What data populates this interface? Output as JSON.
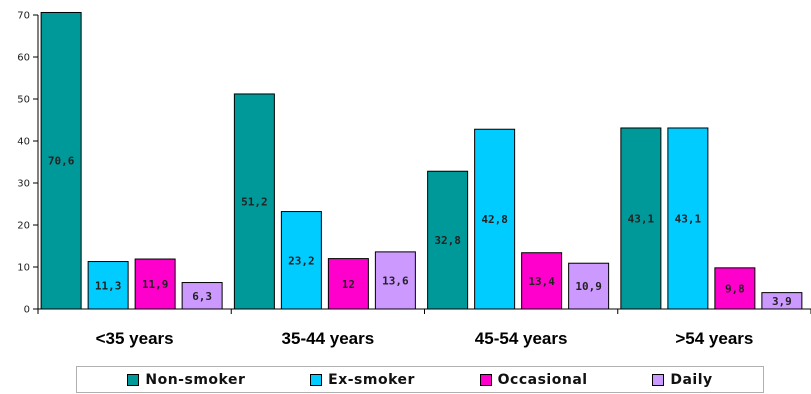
{
  "chart_data": {
    "type": "bar",
    "categories": [
      "<35 years",
      "35-44 years",
      "45-54 years",
      ">54 years"
    ],
    "series": [
      {
        "name": "Non-smoker",
        "values": [
          70.6,
          51.2,
          32.8,
          43.1
        ],
        "labels": [
          "70,6",
          "51,2",
          "32,8",
          "43,1"
        ],
        "color": "#009999"
      },
      {
        "name": "Ex-smoker",
        "values": [
          11.3,
          23.2,
          42.8,
          43.1
        ],
        "labels": [
          "11,3",
          "23,2",
          "42,8",
          "43,1"
        ],
        "color": "#00ccff"
      },
      {
        "name": "Occasional",
        "values": [
          11.9,
          12,
          13.4,
          9.8
        ],
        "labels": [
          "11,9",
          "12",
          "13,4",
          "9,8"
        ],
        "color": "#ff00cc"
      },
      {
        "name": "Daily",
        "values": [
          6.3,
          13.6,
          10.9,
          3.9
        ],
        "labels": [
          "6,3",
          "13,6",
          "10,9",
          "3,9"
        ],
        "color": "#cc99ff"
      }
    ],
    "ylim": [
      0,
      70
    ],
    "yticks": [
      0,
      10,
      20,
      30,
      40,
      50,
      60,
      70
    ],
    "grid": false,
    "legend_position": "bottom"
  }
}
